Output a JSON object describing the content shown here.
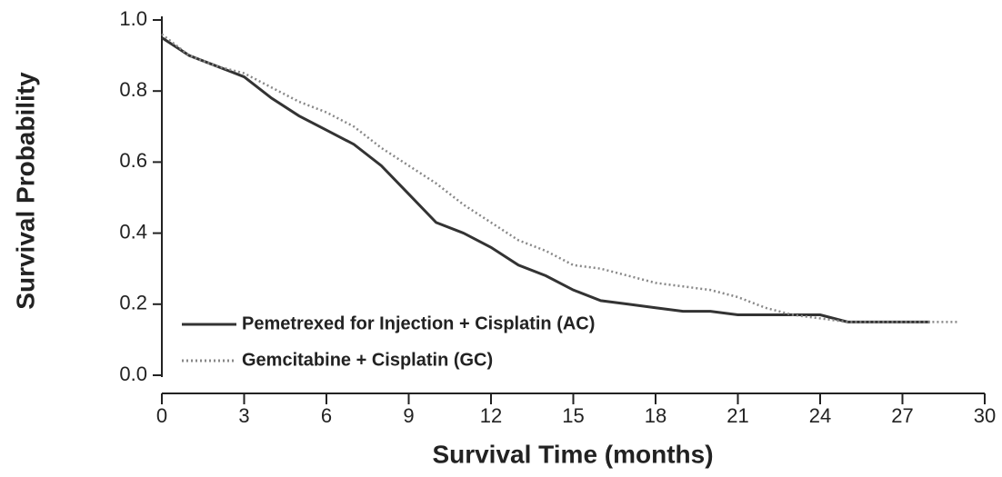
{
  "chart_data": {
    "type": "line",
    "xlabel": "Survival Time (months)",
    "ylabel": "Survival Probability",
    "xlim": [
      0,
      30
    ],
    "xticks": [
      0,
      3,
      6,
      9,
      12,
      15,
      18,
      21,
      24,
      27,
      30
    ],
    "ylim": [
      0,
      1
    ],
    "yticks": [
      {
        "value": 0,
        "label": "0.0"
      },
      0.2,
      0.4,
      0.6,
      0.8,
      {
        "value": 1,
        "label": "1.0"
      }
    ],
    "legend": "lower left",
    "series": [
      {
        "name": "Pemetrexed for Injection + Cisplatin (AC)",
        "color": "#333333",
        "style": "solid",
        "x": [
          0,
          1,
          2,
          3,
          4,
          5,
          6,
          7,
          8,
          9,
          10,
          11,
          12,
          13,
          14,
          15,
          16,
          17,
          18,
          19,
          20,
          21,
          22,
          23,
          24,
          25,
          26,
          27,
          28
        ],
        "values": [
          0.95,
          0.9,
          0.87,
          0.84,
          0.78,
          0.73,
          0.69,
          0.65,
          0.59,
          0.51,
          0.43,
          0.4,
          0.36,
          0.31,
          0.28,
          0.24,
          0.21,
          0.2,
          0.19,
          0.18,
          0.18,
          0.17,
          0.17,
          0.17,
          0.17,
          0.15,
          0.15,
          0.15,
          0.15
        ]
      },
      {
        "name": "Gemcitabine + Cisplatin (GC)",
        "color": "#888888",
        "style": "dotted",
        "x": [
          0,
          1,
          2,
          3,
          4,
          5,
          6,
          7,
          8,
          9,
          10,
          11,
          12,
          13,
          14,
          15,
          16,
          17,
          18,
          19,
          20,
          21,
          22,
          23,
          24,
          25,
          26,
          27,
          28,
          29
        ],
        "values": [
          0.96,
          0.9,
          0.87,
          0.85,
          0.81,
          0.77,
          0.74,
          0.7,
          0.64,
          0.59,
          0.54,
          0.48,
          0.43,
          0.38,
          0.35,
          0.31,
          0.3,
          0.28,
          0.26,
          0.25,
          0.24,
          0.22,
          0.19,
          0.17,
          0.16,
          0.15,
          0.15,
          0.15,
          0.15,
          0.15
        ]
      }
    ]
  }
}
